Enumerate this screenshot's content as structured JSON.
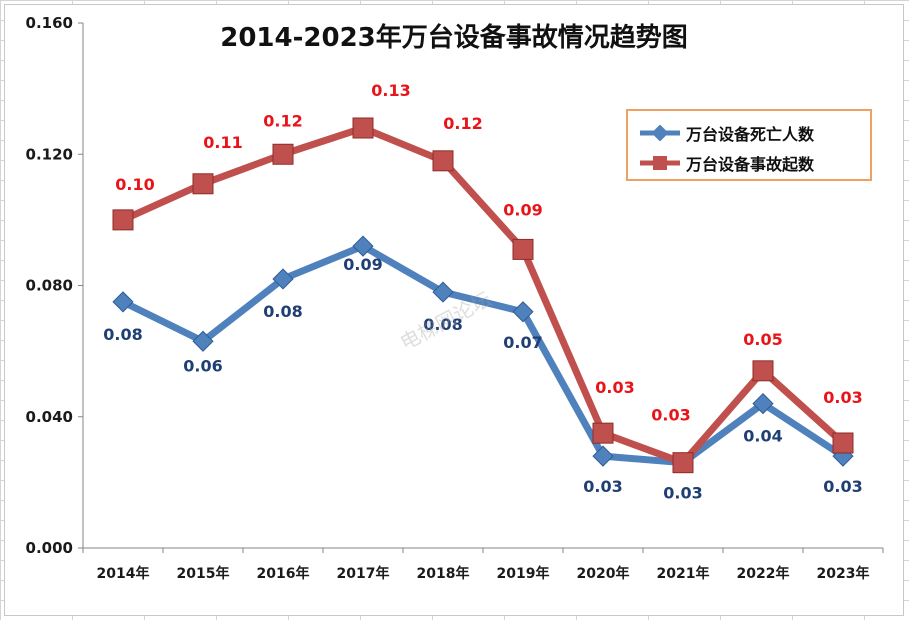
{
  "chart_data": {
    "type": "line",
    "title": "2014-2023年万台设备事故情况趋势图",
    "categories": [
      "2014年",
      "2015年",
      "2016年",
      "2017年",
      "2018年",
      "2019年",
      "2020年",
      "2021年",
      "2022年",
      "2023年"
    ],
    "ylim": [
      0,
      0.16
    ],
    "yticks": [
      "0.000",
      "0.040",
      "0.080",
      "0.120",
      "0.160"
    ],
    "grid": false,
    "legend_position": "top-right",
    "series": [
      {
        "name": "万台设备死亡人数",
        "color": "#4f81bd",
        "values": [
          0.075,
          0.063,
          0.082,
          0.092,
          0.078,
          0.072,
          0.028,
          0.026,
          0.044,
          0.028
        ],
        "labels": [
          "0.08",
          "0.06",
          "0.08",
          "0.09",
          "0.08",
          "0.07",
          "0.03",
          "0.03",
          "0.04",
          "0.03"
        ]
      },
      {
        "name": "万台设备事故起数",
        "color": "#c0504d",
        "values": [
          0.1,
          0.111,
          0.12,
          0.128,
          0.118,
          0.091,
          0.035,
          0.026,
          0.054,
          0.032
        ],
        "labels": [
          "0.10",
          "0.11",
          "0.12",
          "0.13",
          "0.12",
          "0.09",
          "0.03",
          "0.03",
          "0.05",
          "0.03"
        ]
      }
    ]
  },
  "watermark": "电梯网论坛"
}
